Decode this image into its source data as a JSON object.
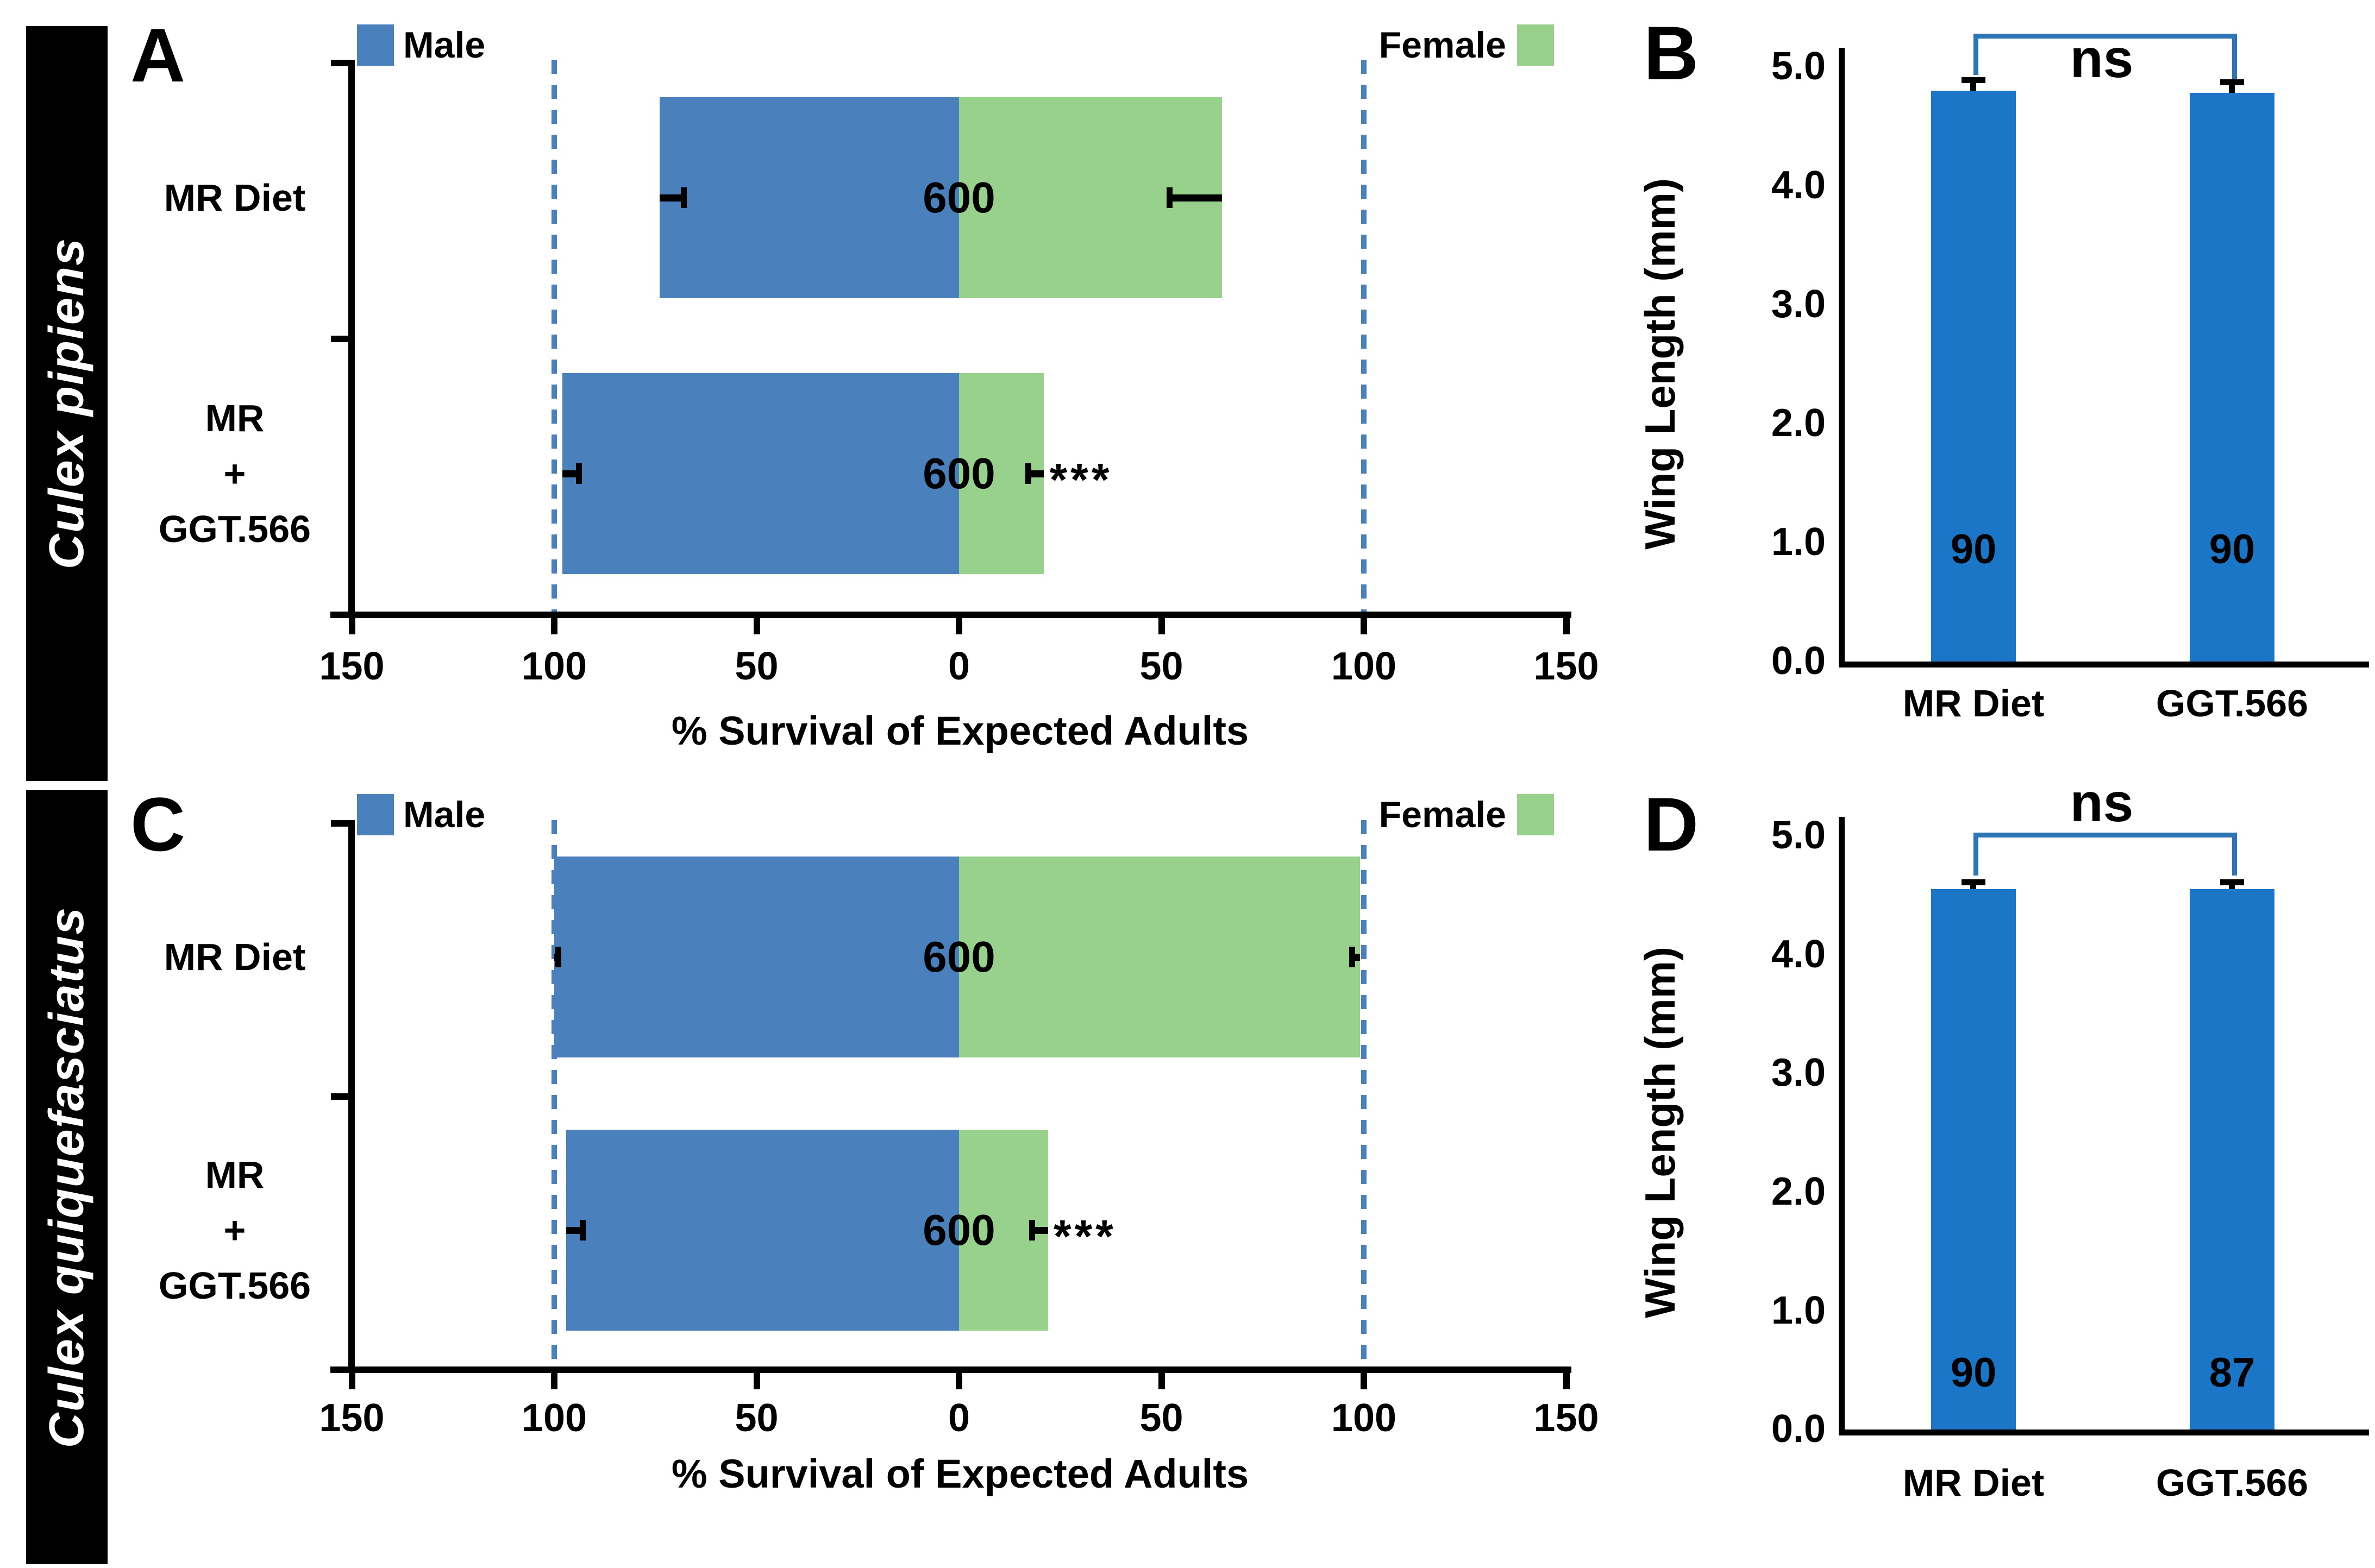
{
  "chart_data": [
    {
      "id": "A",
      "letter": "A",
      "species": "Culex pipiens",
      "type": "bar",
      "subtype": "diverging_stacked_horizontal",
      "xlabel": "% Survival of Expected Adults",
      "xtick_labels": [
        "150",
        "100",
        "50",
        "0",
        "50",
        "100",
        "150"
      ],
      "xtick_values": [
        -150,
        -100,
        -50,
        0,
        50,
        100,
        150
      ],
      "xlim": [
        -150,
        150
      ],
      "reference_lines": [
        -100,
        100
      ],
      "legend_position": "top",
      "categories": [
        "MR Diet",
        "MR + GGT.566"
      ],
      "category_display": [
        [
          "MR Diet"
        ],
        [
          "MR",
          "+",
          "GGT.566"
        ]
      ],
      "series": [
        {
          "name": "Male",
          "values": [
            74,
            98
          ],
          "errors": [
            6,
            4
          ]
        },
        {
          "name": "Female",
          "values": [
            65,
            21
          ],
          "errors": [
            13,
            4
          ]
        }
      ],
      "bar_counts": [
        "600",
        "600"
      ],
      "significance": [
        "",
        "***"
      ]
    },
    {
      "id": "B",
      "letter": "B",
      "type": "bar",
      "subtype": "vertical",
      "ylabel": "Wing Length (mm)",
      "ytick_labels": [
        "5.0",
        "4.0",
        "3.0",
        "2.0",
        "1.0",
        "0.0"
      ],
      "ylim": [
        0,
        5
      ],
      "categories": [
        "MR Diet",
        "GGT.566"
      ],
      "values": [
        4.8,
        4.78
      ],
      "errors": [
        0.1,
        0.1
      ],
      "bar_counts": [
        "90",
        "90"
      ],
      "comparison": "ns"
    },
    {
      "id": "C",
      "letter": "C",
      "species": "Culex quiquefasciatus",
      "type": "bar",
      "subtype": "diverging_stacked_horizontal",
      "xlabel": "% Survival of Expected Adults",
      "xtick_labels": [
        "150",
        "100",
        "50",
        "0",
        "50",
        "100",
        "150"
      ],
      "xtick_values": [
        -150,
        -100,
        -50,
        0,
        50,
        100,
        150
      ],
      "xlim": [
        -150,
        150
      ],
      "reference_lines": [
        -100,
        100
      ],
      "legend_position": "top",
      "categories": [
        "MR Diet",
        "MR + GGT.566"
      ],
      "category_display": [
        [
          "MR Diet"
        ],
        [
          "MR",
          "+",
          "GGT.566"
        ]
      ],
      "series": [
        {
          "name": "Male",
          "values": [
            100,
            97
          ],
          "errors": [
            1,
            4
          ]
        },
        {
          "name": "Female",
          "values": [
            99,
            22
          ],
          "errors": [
            2,
            4
          ]
        }
      ],
      "bar_counts": [
        "600",
        "600"
      ],
      "significance": [
        "",
        "***"
      ]
    },
    {
      "id": "D",
      "letter": "D",
      "type": "bar",
      "subtype": "vertical",
      "ylabel": "Wing Length (mm)",
      "ytick_labels": [
        "5.0",
        "4.0",
        "3.0",
        "2.0",
        "1.0",
        "0.0"
      ],
      "ylim": [
        0,
        5
      ],
      "categories": [
        "MR Diet",
        "GGT.566"
      ],
      "values": [
        4.55,
        4.55
      ],
      "errors": [
        0.07,
        0.07
      ],
      "bar_counts": [
        "90",
        "87"
      ],
      "comparison": "ns"
    }
  ],
  "colors": {
    "male_bar": "#4A81BC",
    "female_bar": "#97D18B",
    "wing_bar": "#1B76C8",
    "reference_line": "#4A81BC",
    "bracket": "#2E75B6",
    "axis": "#000000",
    "error_bar": "#000000",
    "sidebar_bg": "#000000",
    "sidebar_text": "#FFFFFF",
    "background": "#FFFFFF"
  }
}
